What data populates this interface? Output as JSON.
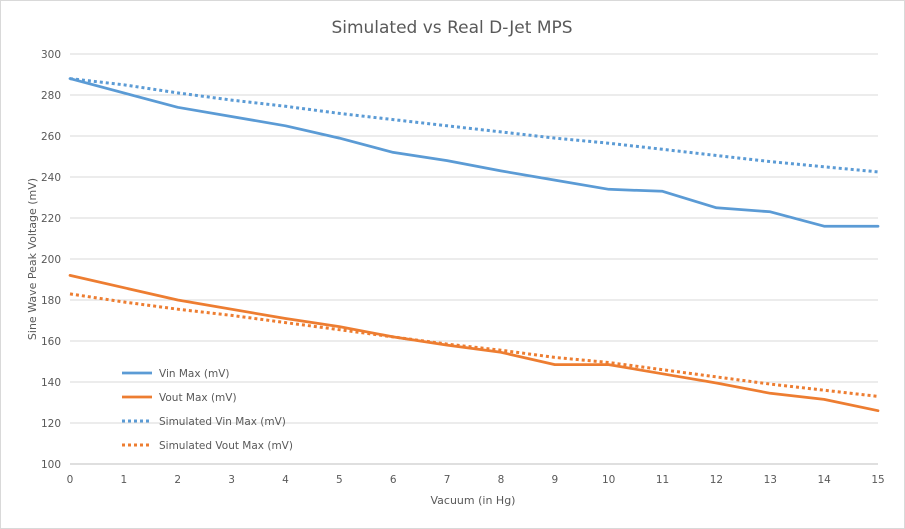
{
  "chart_data": {
    "type": "line",
    "title": "Simulated vs Real D-Jet MPS",
    "xlabel": "Vacuum (in Hg)",
    "ylabel": "Sine Wave Peak Voltage (mV)",
    "xlim": [
      0,
      15
    ],
    "ylim": [
      100,
      300
    ],
    "x_ticks": [
      "0",
      "1",
      "2",
      "3",
      "4",
      "5",
      "6",
      "7",
      "8",
      "9",
      "10",
      "11",
      "12",
      "13",
      "14",
      "15"
    ],
    "y_ticks": [
      "100",
      "120",
      "140",
      "160",
      "180",
      "200",
      "220",
      "240",
      "260",
      "280",
      "300"
    ],
    "grid": "horizontal",
    "legend_position": "bottom-left inside plot",
    "series": [
      {
        "name": "Vin Max (mV)",
        "color": "#5b9bd5",
        "style": "solid",
        "x": [
          0,
          2,
          4,
          5,
          6,
          7,
          8,
          9,
          10,
          11,
          12,
          13,
          14,
          15
        ],
        "values": [
          288,
          274,
          265,
          259,
          252,
          248,
          243,
          238.5,
          234,
          233,
          225,
          223,
          216,
          216
        ]
      },
      {
        "name": "Vout Max (mV)",
        "color": "#ed7d31",
        "style": "solid",
        "x": [
          0,
          2,
          4,
          5,
          6,
          7,
          8,
          9,
          10,
          11,
          12,
          13,
          14,
          15
        ],
        "values": [
          192,
          180,
          171,
          167,
          162,
          158,
          154.5,
          148.5,
          148.5,
          144,
          139.5,
          134.5,
          131.5,
          126
        ]
      },
      {
        "name": "Simulated Vin Max (mV)",
        "color": "#5b9bd5",
        "style": "dotted",
        "x": [
          0,
          1,
          2,
          3,
          4,
          5,
          6,
          7,
          8,
          9,
          10,
          11,
          12,
          13,
          14,
          15
        ],
        "values": [
          288,
          285,
          281,
          277.5,
          274.5,
          271,
          268,
          265,
          262,
          259,
          256.5,
          253.5,
          250.5,
          247.5,
          245,
          242.5
        ]
      },
      {
        "name": "Simulated Vout Max (mV)",
        "color": "#ed7d31",
        "style": "dotted",
        "x": [
          0,
          1,
          2,
          3,
          4,
          5,
          6,
          7,
          8,
          9,
          10,
          11,
          12,
          13,
          14,
          15
        ],
        "values": [
          183,
          179,
          175.5,
          172.5,
          169,
          165.5,
          162,
          158.5,
          155.5,
          152,
          149.5,
          146,
          142.5,
          139,
          136,
          133
        ]
      }
    ]
  }
}
